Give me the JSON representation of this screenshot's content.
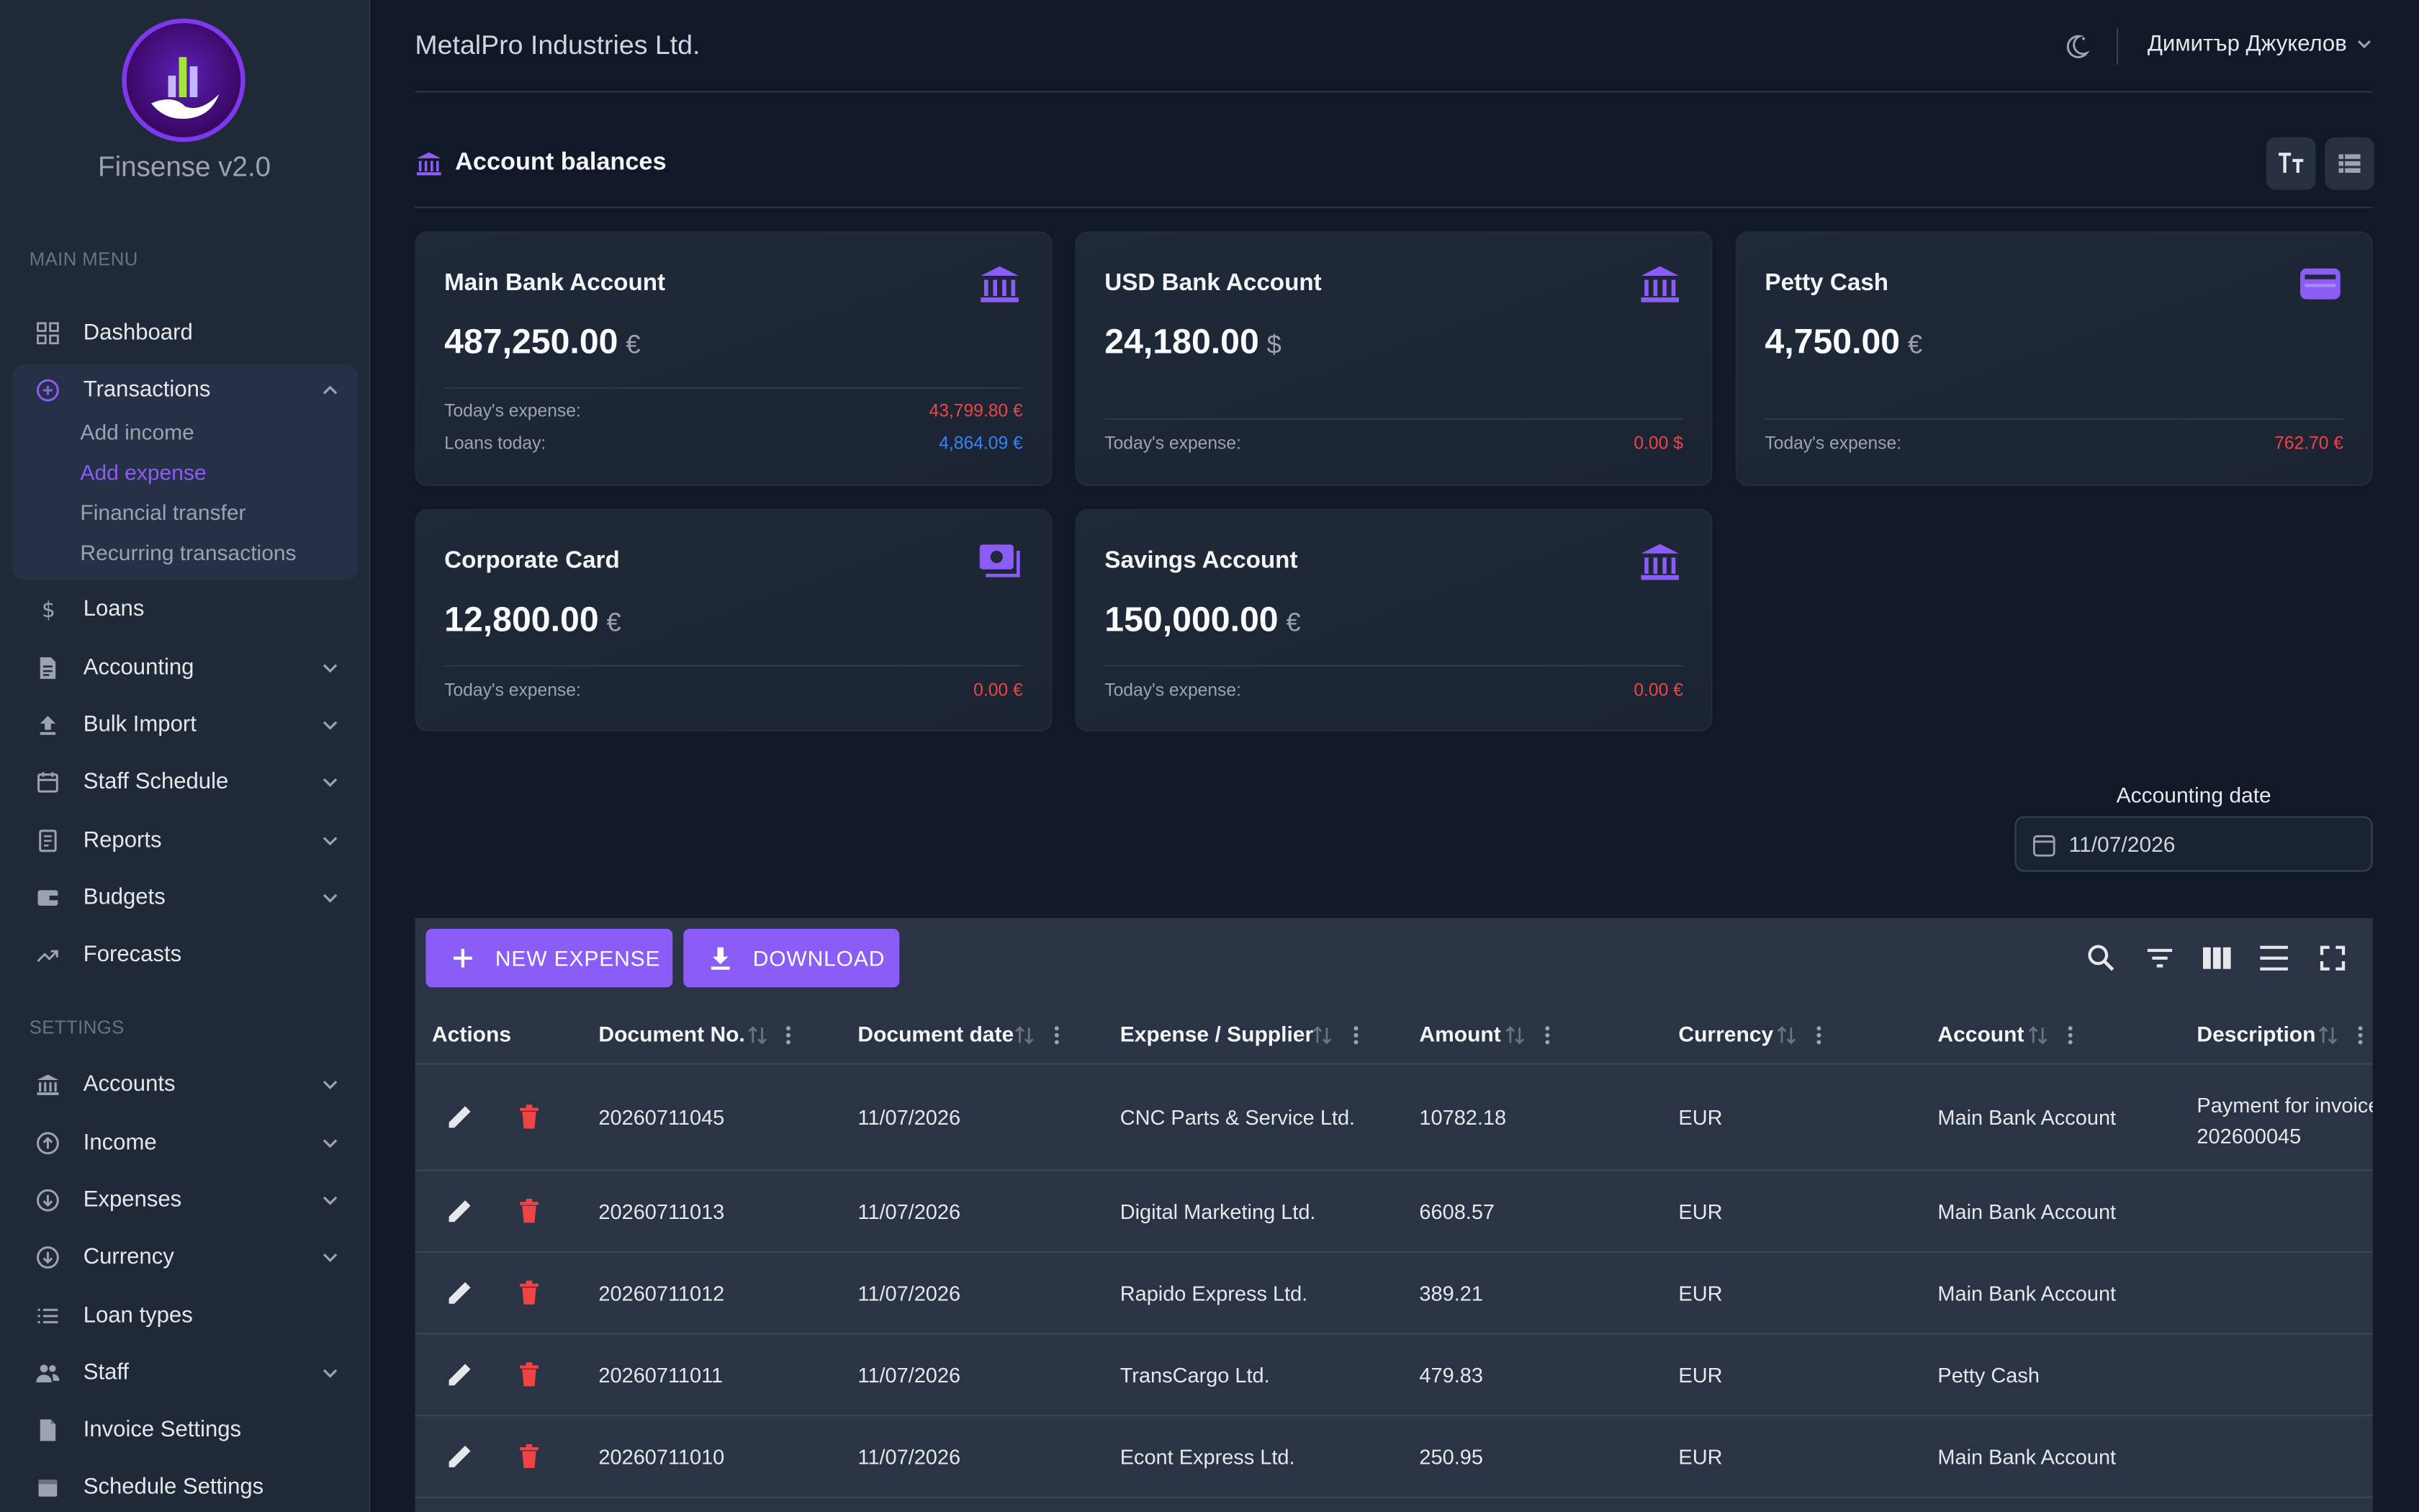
{
  "app": {
    "name": "Finsense v2.0",
    "company": "MetalPro Industries Ltd.",
    "user": "Димитър Джукелов"
  },
  "sidebar": {
    "main_menu_label": "MAIN MENU",
    "settings_label": "SETTINGS",
    "items": {
      "dashboard": "Dashboard",
      "transactions": "Transactions",
      "loans": "Loans",
      "accounting": "Accounting",
      "bulk_import": "Bulk Import",
      "staff_schedule": "Staff Schedule",
      "reports": "Reports",
      "budgets": "Budgets",
      "forecasts": "Forecasts",
      "accounts": "Accounts",
      "income": "Income",
      "expenses": "Expenses",
      "currency": "Currency",
      "loan_types": "Loan types",
      "staff": "Staff",
      "invoice_settings": "Invoice Settings",
      "schedule_settings": "Schedule Settings"
    },
    "transactions_sub": [
      "Add income",
      "Add expense",
      "Financial transfer",
      "Recurring transactions"
    ]
  },
  "balances": {
    "title": "Account balances",
    "cards": [
      {
        "name": "Main Bank Account",
        "amount": "487,250.00",
        "currency": "€",
        "rows": [
          {
            "label": "Today's expense:",
            "value": "43,799.80 €"
          },
          {
            "label": "Loans today:",
            "value": "4,864.09 €"
          }
        ]
      },
      {
        "name": "USD Bank Account",
        "amount": "24,180.00",
        "currency": "$",
        "rows": [
          {
            "label": "Today's expense:",
            "value": "0.00 $"
          }
        ]
      },
      {
        "name": "Petty Cash",
        "amount": "4,750.00",
        "currency": "€",
        "rows": [
          {
            "label": "Today's expense:",
            "value": "762.70 €"
          }
        ]
      },
      {
        "name": "Corporate Card",
        "amount": "12,800.00",
        "currency": "€",
        "rows": [
          {
            "label": "Today's expense:",
            "value": "0.00 €"
          }
        ]
      },
      {
        "name": "Savings Account",
        "amount": "150,000.00",
        "currency": "€",
        "rows": [
          {
            "label": "Today's expense:",
            "value": "0.00 €"
          }
        ]
      }
    ]
  },
  "accounting_date": {
    "label": "Accounting date",
    "value": "11/07/2026"
  },
  "table": {
    "buttons": {
      "new_expense": "NEW EXPENSE",
      "download": "DOWNLOAD"
    },
    "columns": [
      "Actions",
      "Document No.",
      "Document date",
      "Expense / Supplier",
      "Amount",
      "Currency",
      "Account",
      "Description"
    ],
    "rows": [
      {
        "doc_no": "20260711045",
        "date": "11/07/2026",
        "supplier": "CNC Parts & Service Ltd.",
        "amount": "10782.18",
        "currency": "EUR",
        "account": "Main Bank Account",
        "description": "Payment for invoice 202600045",
        "desc_line1": "Payment for invoice",
        "desc_line2": "202600045"
      },
      {
        "doc_no": "20260711013",
        "date": "11/07/2026",
        "supplier": "Digital Marketing Ltd.",
        "amount": "6608.57",
        "currency": "EUR",
        "account": "Main Bank Account",
        "description": ""
      },
      {
        "doc_no": "20260711012",
        "date": "11/07/2026",
        "supplier": "Rapido Express Ltd.",
        "amount": "389.21",
        "currency": "EUR",
        "account": "Main Bank Account",
        "description": ""
      },
      {
        "doc_no": "20260711011",
        "date": "11/07/2026",
        "supplier": "TransCargo Ltd.",
        "amount": "479.83",
        "currency": "EUR",
        "account": "Petty Cash",
        "description": ""
      },
      {
        "doc_no": "20260711010",
        "date": "11/07/2026",
        "supplier": "Econt Express Ltd.",
        "amount": "250.95",
        "currency": "EUR",
        "account": "Main Bank Account",
        "description": ""
      }
    ]
  },
  "colors": {
    "accent": "#8b5cf6",
    "background": "#111827",
    "sidebar": "#1f2937",
    "danger": "#ef4444",
    "info": "#3b82f6"
  }
}
